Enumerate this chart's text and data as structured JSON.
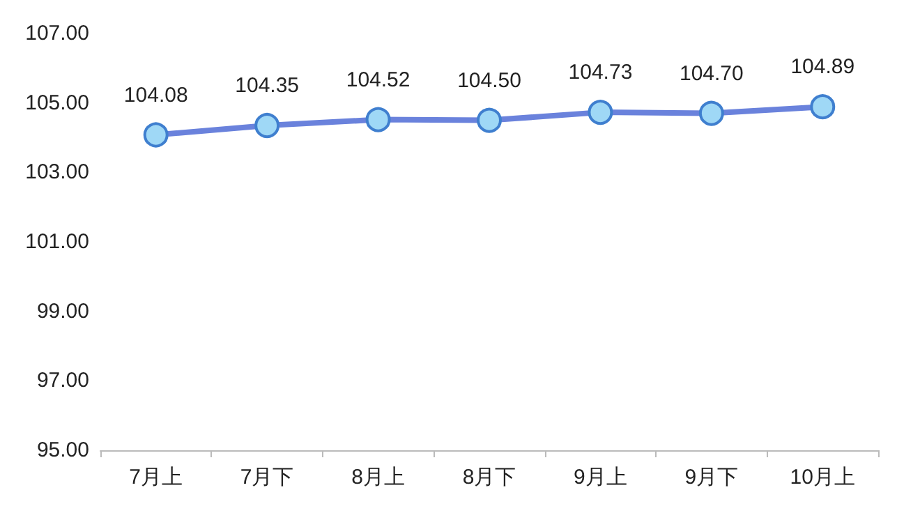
{
  "chart_data": {
    "type": "line",
    "categories": [
      "7月上",
      "7月下",
      "8月上",
      "8月下",
      "9月上",
      "9月下",
      "10月上"
    ],
    "series": [
      {
        "color": "#6a82dc",
        "values": [
          104.08,
          104.35,
          104.52,
          104.5,
          104.73,
          104.7,
          104.89
        ],
        "value_labels": [
          "104.08",
          "104.35",
          "104.52",
          "104.50",
          "104.73",
          "104.70",
          "104.89"
        ]
      }
    ],
    "ylim": [
      95,
      107
    ],
    "yticks": [
      {
        "value": 95,
        "label": "95.00"
      },
      {
        "value": 97,
        "label": "97.00"
      },
      {
        "value": 99,
        "label": "99.00"
      },
      {
        "value": 101,
        "label": "101.00"
      },
      {
        "value": 103,
        "label": "103.00"
      },
      {
        "value": 105,
        "label": "105.00"
      },
      {
        "value": 107,
        "label": "107.00"
      }
    ],
    "grid": false,
    "marker": "circle",
    "line_style": "solid"
  }
}
